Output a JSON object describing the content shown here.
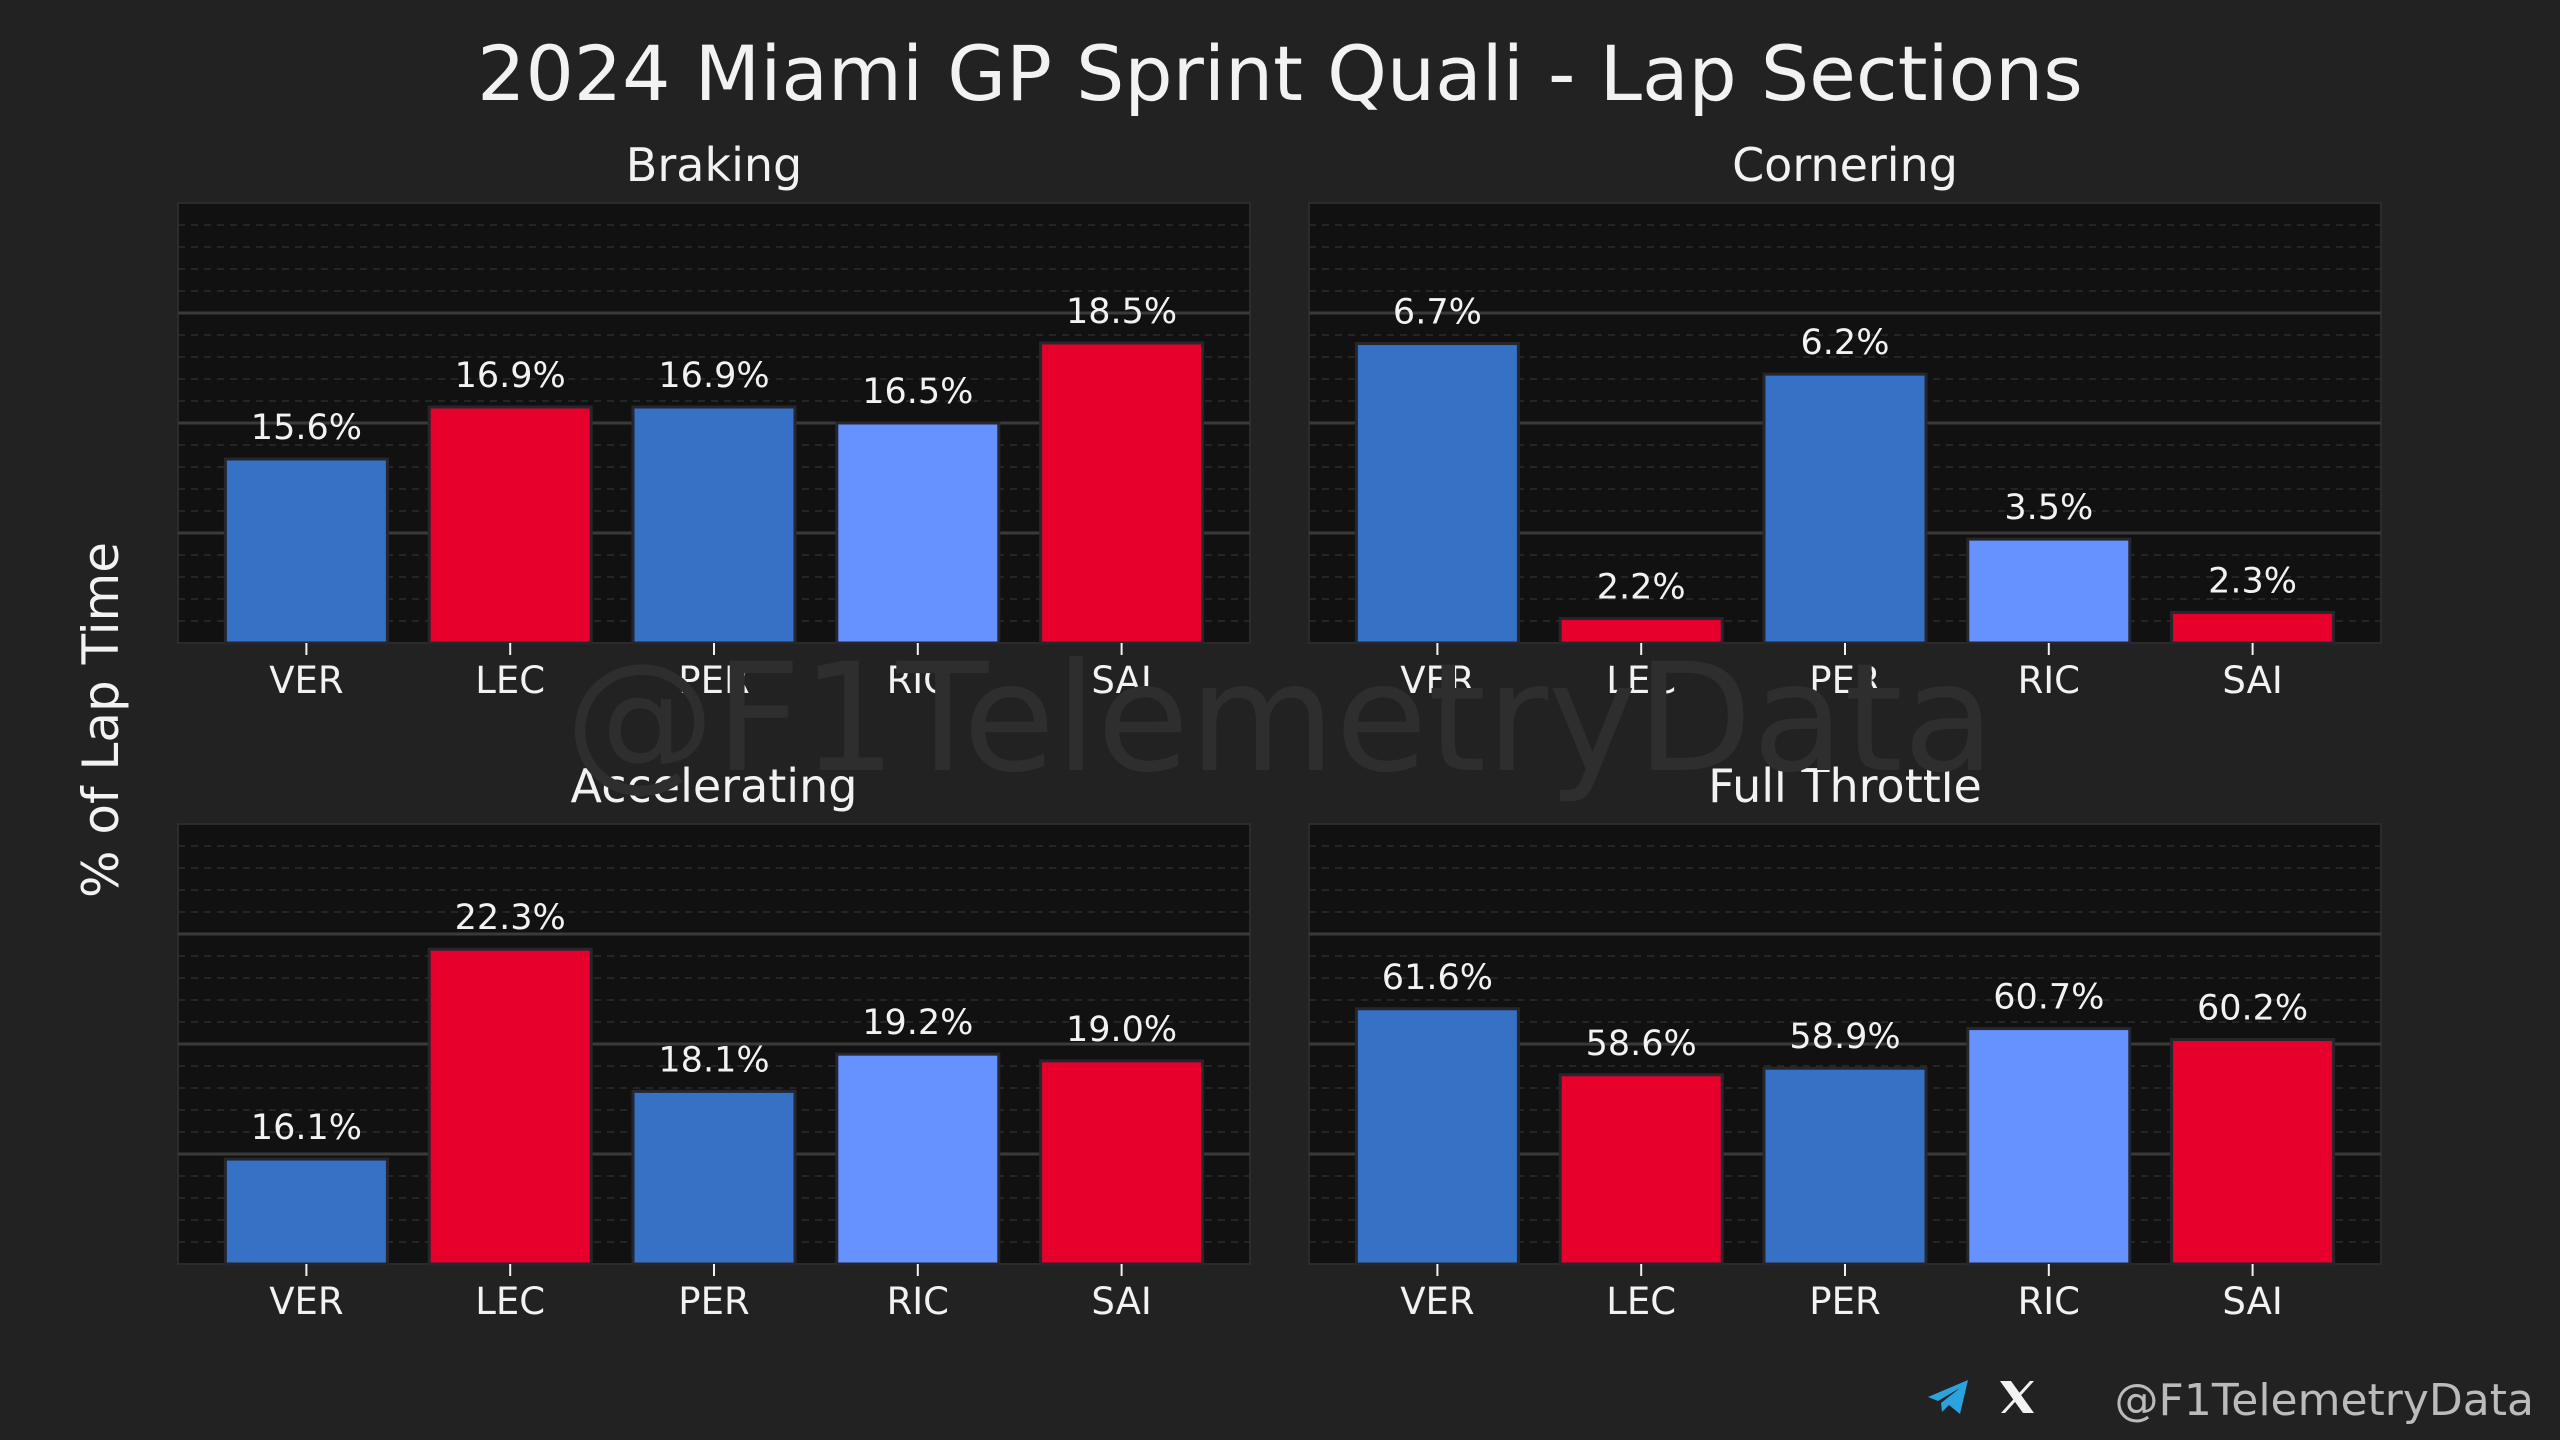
{
  "title": "2024 Miami GP Sprint Quali - Lap Sections",
  "ylabel": "% of Lap Time",
  "watermark": "@F1TelemetryData",
  "footer": {
    "handle": "@F1TelemetryData",
    "icons": [
      "telegram-icon",
      "x-icon"
    ]
  },
  "colors": {
    "background": "#222222",
    "panel": "#111111",
    "VER": "#3671C6",
    "LEC": "#E8002D",
    "PER": "#3671C6",
    "RIC": "#6692FF",
    "SAI": "#E8002D",
    "text": "#F2F2F2"
  },
  "chart_data": [
    {
      "type": "bar",
      "title": "Braking",
      "categories": [
        "VER",
        "LEC",
        "PER",
        "RIC",
        "SAI"
      ],
      "values": [
        15.6,
        16.9,
        16.9,
        16.5,
        18.5
      ],
      "labels": [
        "15.6%",
        "16.9%",
        "16.9%",
        "16.5%",
        "18.5%"
      ],
      "ylim": [
        11.0,
        22.0
      ]
    },
    {
      "type": "bar",
      "title": "Cornering",
      "categories": [
        "VER",
        "LEC",
        "PER",
        "RIC",
        "SAI"
      ],
      "values": [
        6.7,
        2.2,
        6.2,
        3.5,
        2.3
      ],
      "labels": [
        "6.7%",
        "2.2%",
        "6.2%",
        "3.5%",
        "2.3%"
      ],
      "ylim": [
        1.8,
        9.0
      ]
    },
    {
      "type": "bar",
      "title": "Accelerating",
      "categories": [
        "VER",
        "LEC",
        "PER",
        "RIC",
        "SAI"
      ],
      "values": [
        16.1,
        22.3,
        18.1,
        19.2,
        19.0
      ],
      "labels": [
        "16.1%",
        "22.3%",
        "18.1%",
        "19.2%",
        "19.0%"
      ],
      "ylim": [
        13.0,
        26.0
      ]
    },
    {
      "type": "bar",
      "title": "Full Throttle",
      "categories": [
        "VER",
        "LEC",
        "PER",
        "RIC",
        "SAI"
      ],
      "values": [
        61.6,
        58.6,
        58.9,
        60.7,
        60.2
      ],
      "labels": [
        "61.6%",
        "58.6%",
        "58.9%",
        "60.7%",
        "60.2%"
      ],
      "ylim": [
        50.0,
        70.0
      ]
    }
  ]
}
